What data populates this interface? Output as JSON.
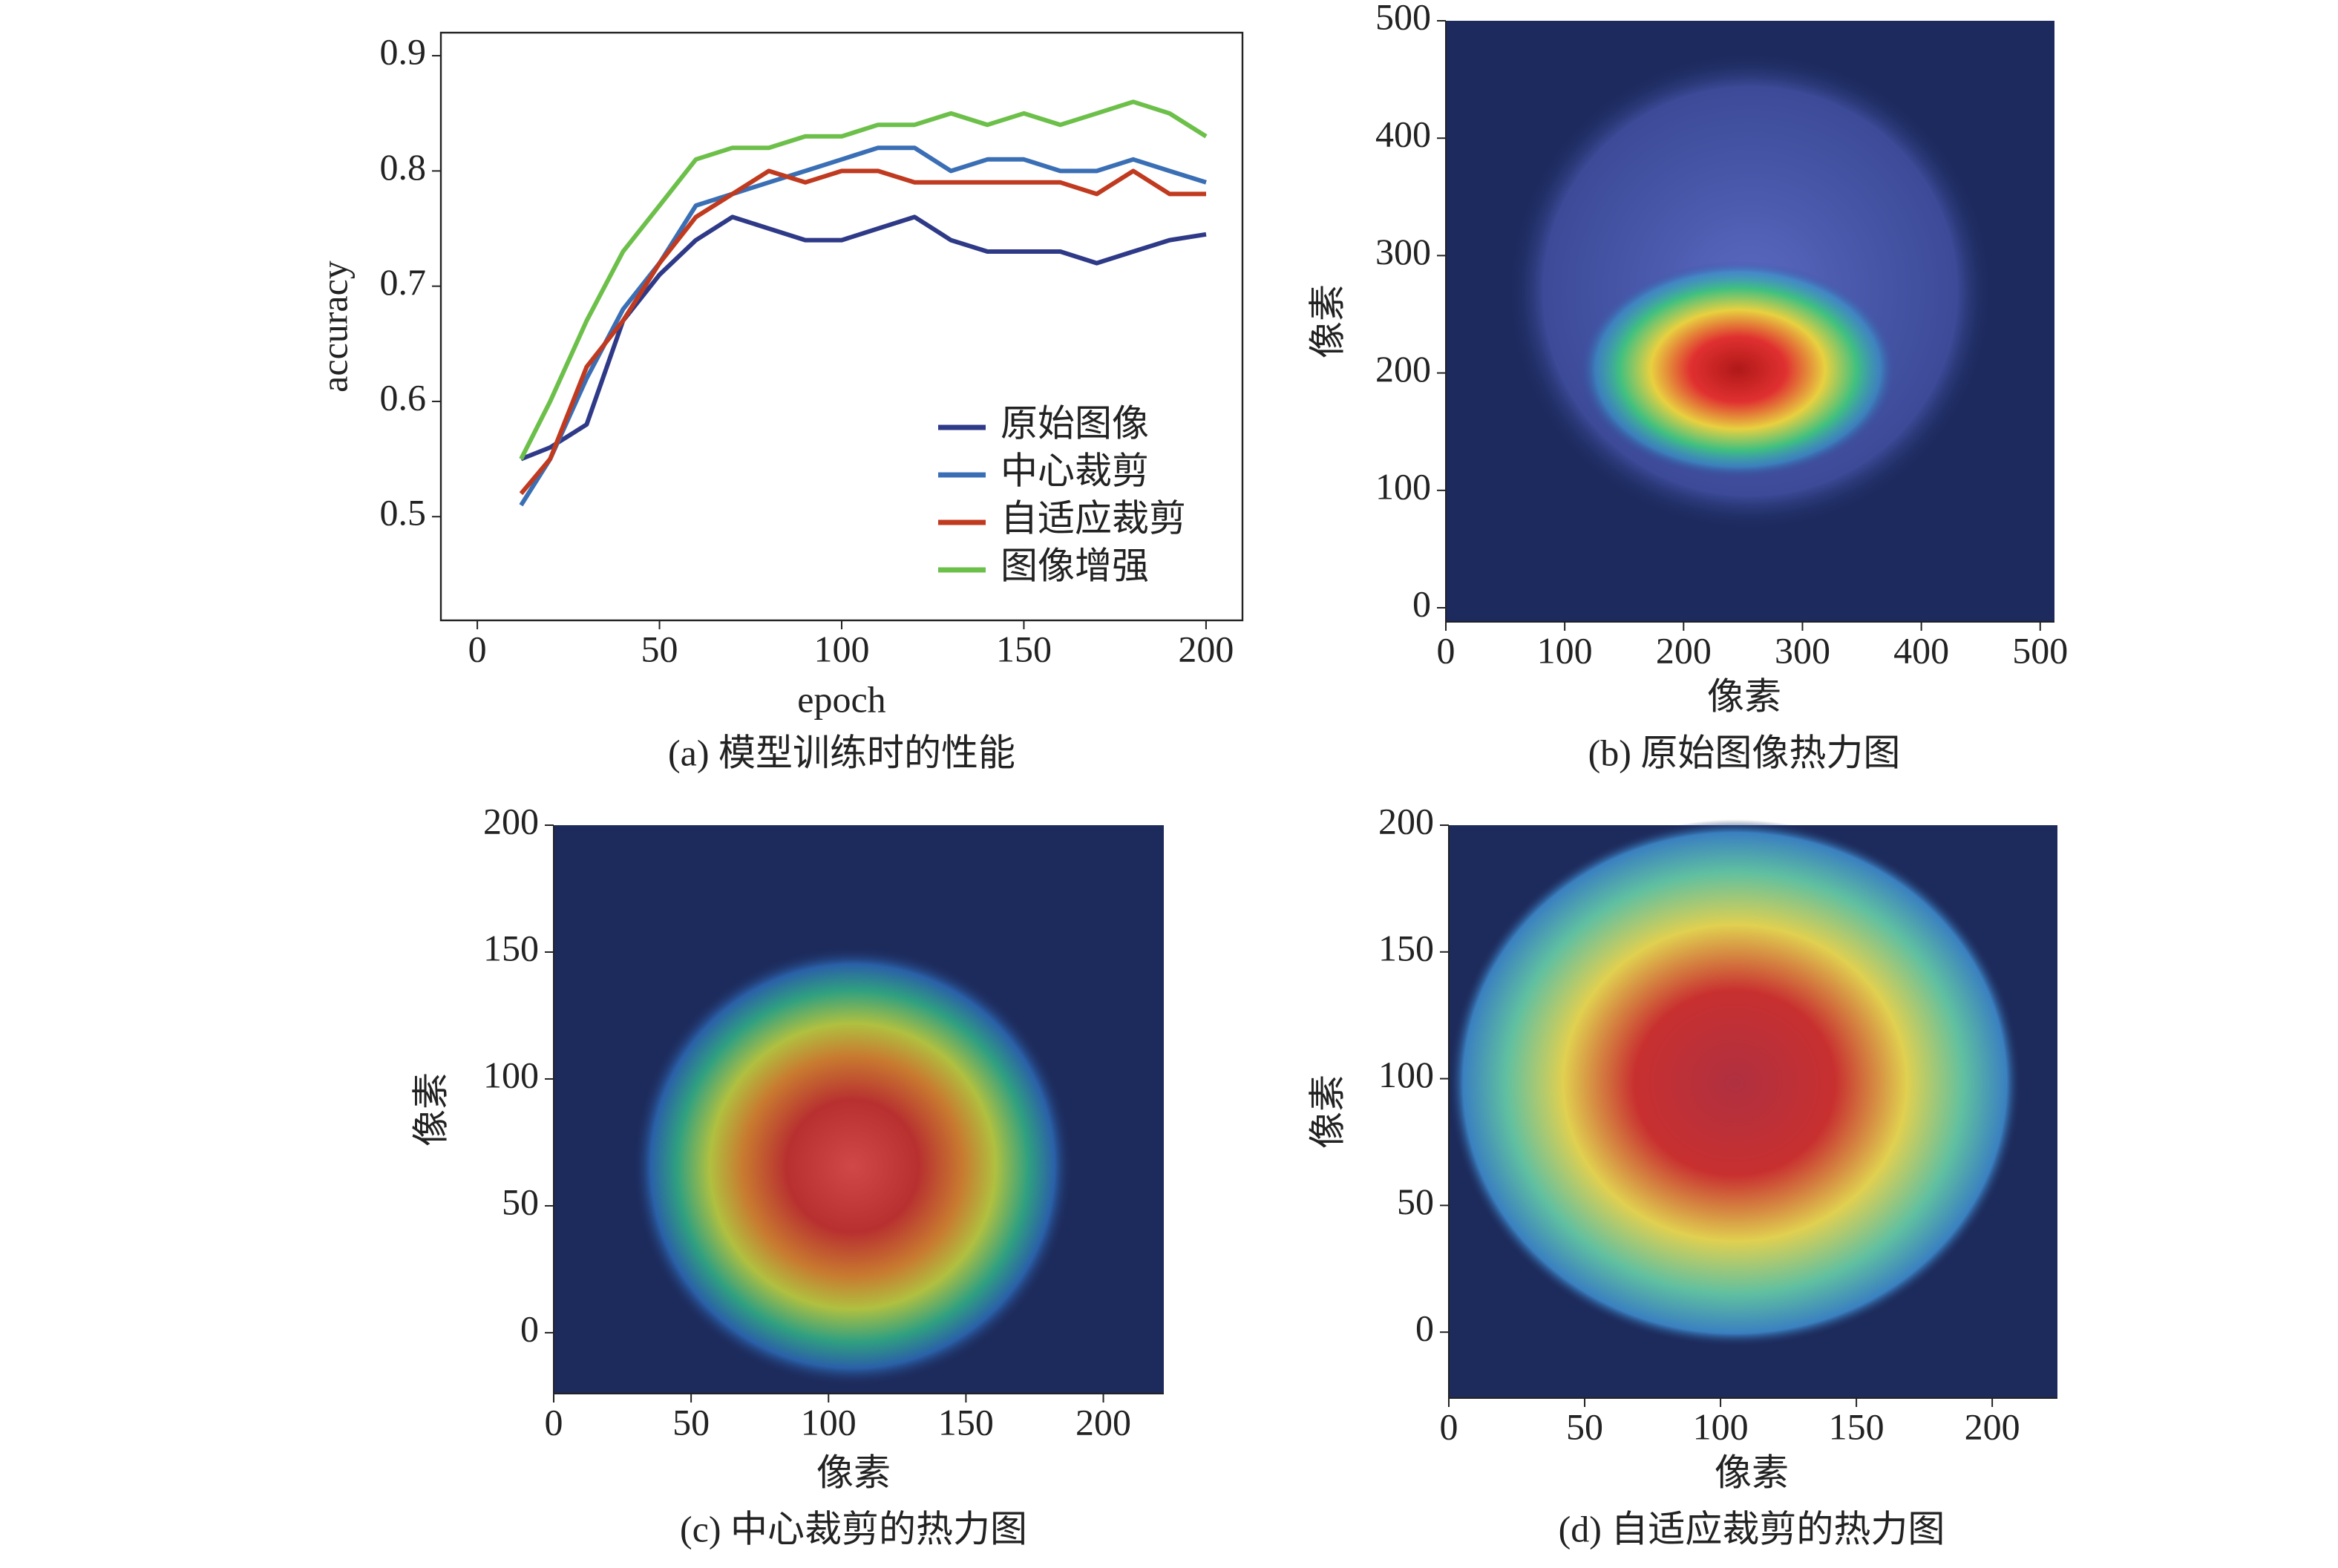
{
  "chart_data": [
    {
      "type": "line",
      "caption": "(a) 模型训练时的性能",
      "xlabel": "epoch",
      "ylabel": "accuracy",
      "x": [
        12,
        20,
        30,
        40,
        50,
        60,
        70,
        80,
        90,
        100,
        110,
        120,
        130,
        140,
        150,
        160,
        170,
        180,
        190,
        200
      ],
      "series": [
        {
          "name": "原始图像",
          "color": "#2e3a87",
          "values": [
            0.55,
            0.56,
            0.58,
            0.67,
            0.71,
            0.74,
            0.76,
            0.75,
            0.74,
            0.74,
            0.75,
            0.76,
            0.74,
            0.73,
            0.73,
            0.73,
            0.72,
            0.73,
            0.74,
            0.745
          ]
        },
        {
          "name": "中心裁剪",
          "color": "#3a6fb5",
          "values": [
            0.51,
            0.55,
            0.62,
            0.68,
            0.72,
            0.77,
            0.78,
            0.79,
            0.8,
            0.81,
            0.82,
            0.82,
            0.8,
            0.81,
            0.81,
            0.8,
            0.8,
            0.81,
            0.8,
            0.79
          ]
        },
        {
          "name": "自适应裁剪",
          "color": "#c03a20",
          "values": [
            0.52,
            0.55,
            0.63,
            0.67,
            0.72,
            0.76,
            0.78,
            0.8,
            0.79,
            0.8,
            0.8,
            0.79,
            0.79,
            0.79,
            0.79,
            0.79,
            0.78,
            0.8,
            0.78,
            0.78
          ]
        },
        {
          "name": "图像增强",
          "color": "#6cc04a",
          "values": [
            0.55,
            0.6,
            0.67,
            0.73,
            0.77,
            0.81,
            0.82,
            0.82,
            0.83,
            0.83,
            0.84,
            0.84,
            0.85,
            0.84,
            0.85,
            0.84,
            0.85,
            0.86,
            0.85,
            0.83
          ]
        }
      ],
      "xlim": [
        -10,
        210
      ],
      "ylim": [
        0.41,
        0.92
      ],
      "xticks": [
        0,
        50,
        100,
        150,
        200
      ],
      "yticks": [
        0.5,
        0.6,
        0.7,
        0.8,
        0.9
      ],
      "legend": "lower right"
    },
    {
      "type": "heatmap",
      "caption": "(b) 原始图像热力图",
      "xlabel": "像素",
      "ylabel": "像素",
      "xlim": [
        0,
        512
      ],
      "ylim": [
        -12,
        500
      ],
      "xticks": [
        0,
        100,
        200,
        300,
        400,
        500
      ],
      "yticks": [
        0,
        100,
        200,
        300,
        400,
        500
      ]
    },
    {
      "type": "heatmap",
      "caption": "(c) 中心裁剪的热力图",
      "xlabel": "像素",
      "ylabel": "像素",
      "xlim": [
        0,
        222
      ],
      "ylim": [
        -24,
        200
      ],
      "xticks": [
        0,
        50,
        100,
        150,
        200
      ],
      "yticks": [
        0,
        50,
        100,
        150,
        200
      ]
    },
    {
      "type": "heatmap",
      "caption": "(d) 自适应裁剪的热力图",
      "xlabel": "像素",
      "ylabel": "像素",
      "xlim": [
        0,
        224
      ],
      "ylim": [
        -26,
        200
      ],
      "xticks": [
        0,
        50,
        100,
        150,
        200
      ],
      "yticks": [
        0,
        50,
        100,
        150,
        200
      ]
    }
  ]
}
